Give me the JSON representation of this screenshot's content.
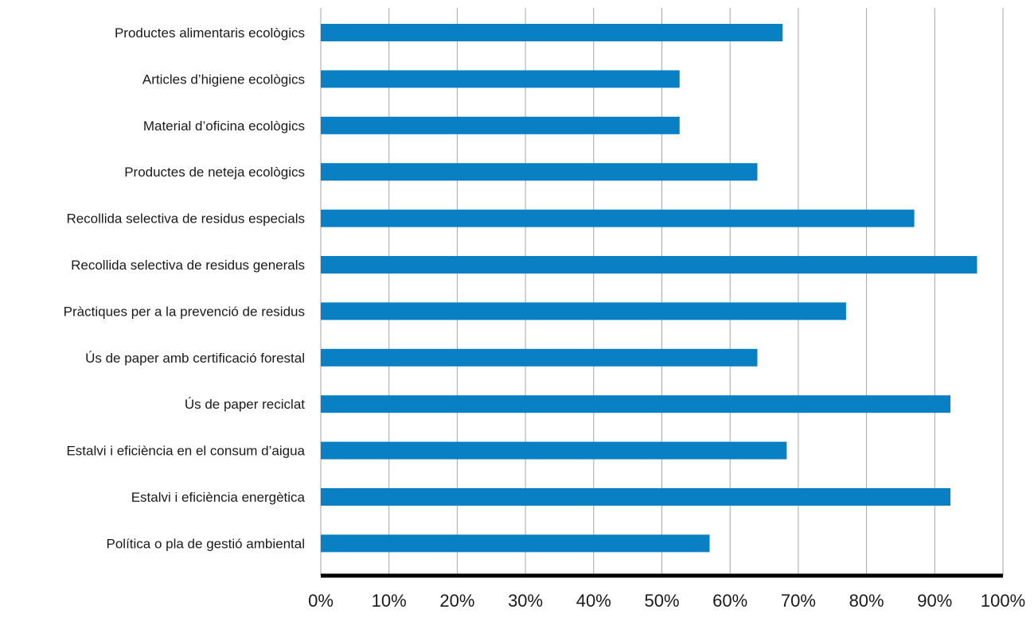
{
  "chart_data": {
    "type": "bar",
    "orientation": "horizontal",
    "categories": [
      "Productes alimentaris ecològics",
      "Articles d’higiene ecològics",
      "Material d’oficina ecològics",
      "Productes de neteja ecològics",
      "Recollida selectiva de residus especials",
      "Recollida selectiva de residus generals",
      "Pràctiques per a la prevenció de residus",
      "Ús de paper amb certificació forestal",
      "Ús de paper reciclat",
      "Estalvi i eficiència en el consum d’aigua",
      "Estalvi i eficiència energètica",
      "Política o pla de gestió ambiental"
    ],
    "values": [
      0.677,
      0.526,
      0.526,
      0.64,
      0.87,
      0.962,
      0.77,
      0.64,
      0.923,
      0.683,
      0.923,
      0.57
    ],
    "xlim": [
      0,
      1
    ],
    "x_ticks": [
      "0%",
      "10%",
      "20%",
      "30%",
      "40%",
      "50%",
      "60%",
      "70%",
      "80%",
      "90%",
      "100%"
    ],
    "grid": "vertical",
    "colors": {
      "bar": "#0a80c4",
      "grid": "#a6a6a6",
      "axis": "#000000"
    }
  }
}
